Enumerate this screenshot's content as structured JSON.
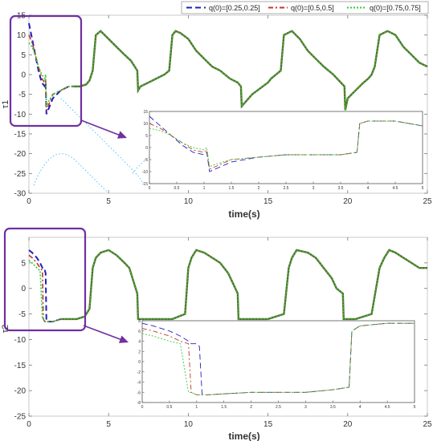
{
  "legend": {
    "placement": "top-right",
    "entries": [
      {
        "label": "q(0)=[0.25,0.25]",
        "color": "#1f1fbf",
        "dash": "dashed"
      },
      {
        "label": "q(0)=[0.5,0.5]",
        "color": "#c0392b",
        "dash": "dashdot"
      },
      {
        "label": "q(0)=[0.75,0.75]",
        "color": "#33cc33",
        "dash": "dotted"
      }
    ]
  },
  "colors": {
    "series": [
      "#1f1fbf",
      "#c0392b",
      "#33cc33"
    ],
    "overlap_line": "#556b2f",
    "callout": "#7030a0",
    "stray": "#4fc3f7"
  },
  "chart_data": [
    {
      "type": "line",
      "ylabel": "τ1",
      "xlabel": "time(s)",
      "xlim": [
        0,
        25
      ],
      "ylim": [
        -30,
        15
      ],
      "xticks": [
        "0",
        "5",
        "10",
        "15",
        "20",
        "25"
      ],
      "yticks": [
        "15",
        "10",
        "5",
        "0",
        "-5",
        "-10",
        "-15",
        "-20",
        "-25",
        "-30"
      ],
      "steady_state": {
        "x": [
          2.8,
          3.2,
          3.6,
          3.8,
          4.0,
          4.2,
          4.5,
          5.0,
          5.5,
          6.0,
          6.4,
          6.8,
          6.85,
          7.0,
          7.5,
          8.0,
          8.5,
          8.8,
          9.0,
          9.2,
          9.5,
          10.0,
          10.5,
          11.0,
          11.5,
          12.0,
          12.6,
          13.1,
          13.3,
          13.35,
          14.0,
          14.5,
          15.0,
          15.2,
          15.5,
          15.8,
          16.0,
          16.5,
          17.0,
          17.5,
          18.0,
          18.5,
          19.1,
          19.8,
          19.85,
          20.0,
          20.5,
          21.0,
          21.3,
          21.5,
          21.7,
          22.0,
          22.5,
          23.0,
          23.5,
          24.0,
          24.5,
          25.0
        ],
        "y": [
          -3,
          -3,
          -2.5,
          -1.5,
          1,
          10,
          11,
          9,
          7,
          5,
          3.5,
          1,
          -4,
          -3,
          -2,
          -1,
          0,
          1,
          10,
          11,
          10.5,
          9,
          6,
          4,
          2,
          1,
          -1,
          -2,
          -3,
          -8,
          -5,
          -3.5,
          -2,
          -1,
          0,
          1,
          10,
          11,
          9,
          6,
          4,
          2,
          0,
          -3,
          -9,
          -6,
          -4,
          -2,
          -1,
          0,
          2,
          10,
          11,
          10,
          7,
          5,
          3,
          2
        ]
      },
      "transient": {
        "x": [
          0,
          0.2,
          0.4,
          0.6,
          0.8,
          1.0,
          1.05,
          1.1,
          1.2,
          1.5,
          2.0,
          2.5,
          2.8
        ],
        "series": [
          {
            "name": "q(0)=[0.25,0.25]",
            "values": [
              13,
              9,
              5,
              1,
              -2,
              -3,
              -2,
              -10,
              -9,
              -6,
              -4,
              -3,
              -3
            ]
          },
          {
            "name": "q(0)=[0.5,0.5]",
            "values": [
              10,
              8,
              5,
              2,
              -1,
              -2,
              -1,
              -9,
              -8,
              -5,
              -4,
              -3,
              -3
            ]
          },
          {
            "name": "q(0)=[0.75,0.75]",
            "values": [
              8,
              7,
              5,
              2,
              0,
              -1,
              0,
              -8,
              -7,
              -5,
              -4,
              -3,
              -3
            ]
          }
        ]
      },
      "inset": {
        "xlim": [
          0,
          5
        ],
        "ylim": [
          -15,
          15
        ],
        "xticks": [
          "0",
          "0.5",
          "1",
          "1.5",
          "2",
          "2.5",
          "3",
          "3.5",
          "4",
          "4.5",
          "5"
        ],
        "yticks": [
          "15",
          "10",
          "5",
          "0",
          "-5",
          "-10",
          "-15"
        ],
        "x": [
          0,
          0.2,
          0.4,
          0.6,
          0.8,
          1.0,
          1.05,
          1.1,
          1.2,
          1.5,
          2.0,
          2.5,
          3.0,
          3.5,
          3.8,
          3.85,
          4.0,
          4.5,
          5.0
        ],
        "series": [
          {
            "name": "q(0)=[0.25,0.25]",
            "values": [
              13,
              9,
              5,
              1,
              -2,
              -3,
              -2,
              -10,
              -9,
              -6,
              -4,
              -3,
              -3,
              -3,
              -2,
              10,
              11,
              11,
              9
            ]
          },
          {
            "name": "q(0)=[0.5,0.5]",
            "values": [
              10,
              8,
              5,
              2,
              -1,
              -2,
              -1,
              -9,
              -8,
              -5,
              -4,
              -3,
              -3,
              -3,
              -2,
              10,
              11,
              11,
              9
            ]
          },
          {
            "name": "q(0)=[0.75,0.75]",
            "values": [
              8,
              7,
              5,
              2,
              0,
              -1,
              0,
              -8,
              -7,
              -5,
              -4,
              -3,
              -3,
              -3,
              -2,
              10,
              11,
              11,
              9
            ]
          }
        ]
      }
    },
    {
      "type": "line",
      "ylabel": "τ2",
      "xlabel": "time(s)",
      "xlim": [
        0,
        25
      ],
      "ylim": [
        -25,
        10
      ],
      "xticks": [
        "0",
        "5",
        "10",
        "15",
        "20",
        "25"
      ],
      "yticks": [
        "5",
        "0",
        "-5",
        "-10",
        "-15",
        "-20",
        "-25"
      ],
      "steady_state": {
        "x": [
          2.0,
          2.5,
          3.0,
          3.5,
          3.8,
          4.0,
          4.2,
          4.5,
          5.0,
          5.5,
          6.0,
          6.3,
          6.6,
          6.8,
          6.85,
          7.0,
          8.0,
          9.0,
          9.8,
          10.0,
          10.2,
          10.5,
          11.0,
          11.5,
          12.0,
          12.5,
          12.8,
          13.1,
          13.15,
          14.0,
          15.0,
          16.0,
          16.3,
          16.5,
          16.8,
          17.5,
          18.0,
          18.5,
          19.0,
          19.3,
          19.7,
          19.75,
          20.5,
          21.5,
          22.0,
          22.3,
          22.6,
          23.0,
          23.5,
          24.0,
          24.5,
          25.0
        ],
        "y": [
          -6,
          -6,
          -6,
          -5.5,
          -4,
          4,
          6,
          7,
          7.5,
          6.5,
          5,
          4,
          1,
          -1,
          -6,
          -6,
          -6,
          -6,
          -5,
          4,
          6,
          7.5,
          7,
          6,
          5,
          3,
          1,
          -1,
          -6,
          -6,
          -6,
          -5,
          4,
          6,
          7.5,
          7,
          6,
          4,
          2,
          0,
          -1,
          -6,
          -6,
          -5,
          4,
          6,
          7.5,
          7,
          6,
          5,
          4,
          4
        ]
      },
      "transient": {
        "x": [
          0,
          0.2,
          0.5,
          0.7,
          0.85,
          0.9,
          1.0,
          1.05,
          1.1,
          1.2,
          1.5,
          2.0
        ],
        "series": [
          {
            "name": "q(0)=[0.25,0.25]",
            "values": [
              7.5,
              7,
              6,
              5,
              4,
              3.5,
              3.5,
              3,
              -6.5,
              -6.5,
              -6.5,
              -6
            ]
          },
          {
            "name": "q(0)=[0.5,0.5]",
            "values": [
              6.5,
              6,
              5,
              4,
              3.5,
              -6,
              -6.5,
              -6.5,
              -6.5,
              -6.5,
              -6.5,
              -6
            ]
          },
          {
            "name": "q(0)=[0.75,0.75]",
            "values": [
              5.5,
              5,
              4,
              3.5,
              -6,
              -6,
              -6.5,
              -6.5,
              -6.5,
              -6.5,
              -6.5,
              -6
            ]
          }
        ]
      },
      "inset": {
        "xlim": [
          0,
          5
        ],
        "ylim": [
          -8,
          8
        ],
        "xticks": [
          "0",
          "0.5",
          "1",
          "1.5",
          "2",
          "2.5",
          "3",
          "3.5",
          "4",
          "4.5",
          "5"
        ],
        "yticks": [
          "8",
          "6",
          "4",
          "2",
          "0",
          "-2",
          "-4",
          "-6",
          "-8"
        ],
        "x": [
          0,
          0.2,
          0.5,
          0.7,
          0.85,
          0.9,
          1.0,
          1.05,
          1.1,
          1.2,
          1.5,
          2.0,
          2.5,
          3.0,
          3.5,
          3.8,
          3.85,
          4.0,
          4.5,
          5.0
        ],
        "series": [
          {
            "name": "q(0)=[0.25,0.25]",
            "values": [
              7.5,
              7,
              6,
              5,
              4,
              3.5,
              3.5,
              3,
              -6.5,
              -6.5,
              -6.3,
              -6,
              -6,
              -6,
              -5.5,
              -5,
              6,
              7,
              7.5,
              7.5
            ]
          },
          {
            "name": "q(0)=[0.5,0.5]",
            "values": [
              6.5,
              6,
              5,
              4,
              3.5,
              -6,
              -6.5,
              -6.5,
              -6.5,
              -6.5,
              -6.3,
              -6,
              -6,
              -6,
              -5.5,
              -5,
              6,
              7,
              7.5,
              7.5
            ]
          },
          {
            "name": "q(0)=[0.75,0.75]",
            "values": [
              5.5,
              5,
              4,
              3.5,
              -6,
              -6,
              -6.5,
              -6.5,
              -6.5,
              -6.5,
              -6.3,
              -6,
              -6,
              -6,
              -5.5,
              -5,
              6,
              7,
              7.5,
              7.5
            ]
          }
        ]
      }
    }
  ]
}
